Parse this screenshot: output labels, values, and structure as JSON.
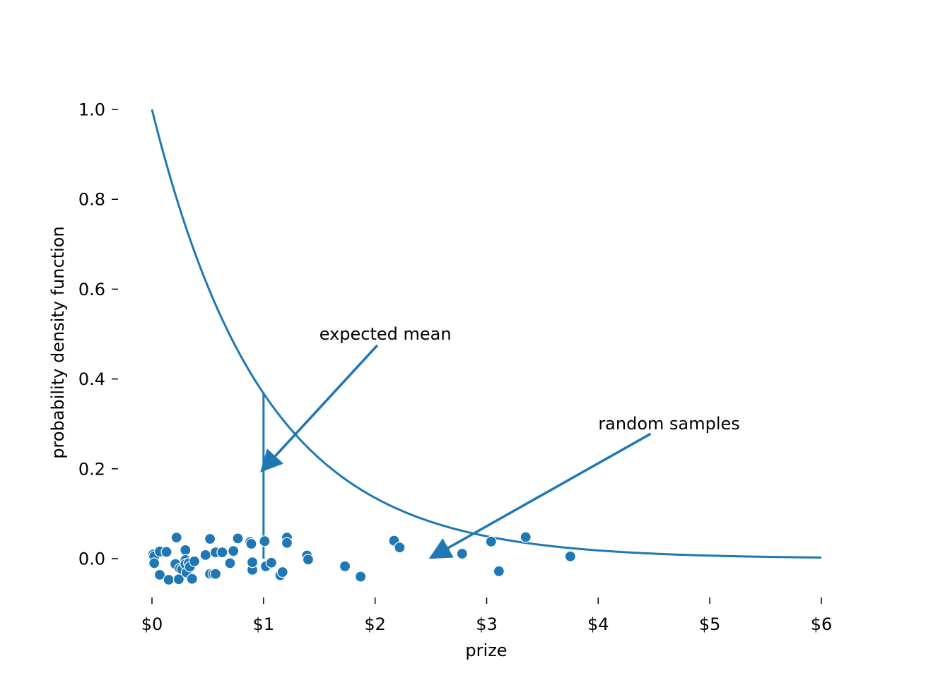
{
  "chart_data": {
    "type": "scatter",
    "title": "",
    "xlabel": "prize",
    "ylabel": "probability density function",
    "xlim": [
      -0.1,
      6.05
    ],
    "ylim": [
      -0.09,
      1.1
    ],
    "grid": false,
    "x_ticks": [
      0,
      1,
      2,
      3,
      4,
      5,
      6
    ],
    "x_tick_labels": [
      "$0",
      "$1",
      "$2",
      "$3",
      "$4",
      "$5",
      "$6"
    ],
    "y_ticks": [
      0.0,
      0.2,
      0.4,
      0.6,
      0.8,
      1.0
    ],
    "y_tick_labels": [
      "0.0",
      "0.2",
      "0.4",
      "0.6",
      "0.8",
      "1.0"
    ],
    "color": "#1f77b4",
    "pdf_curve": {
      "type": "line",
      "distribution": "exponential",
      "rate": 1,
      "x_range": [
        0,
        6
      ]
    },
    "mean_line": {
      "x": 1,
      "y_range": [
        0,
        0.37
      ]
    },
    "series": [
      {
        "type": "scatter",
        "points": [
          [
            0.01,
            0.009
          ],
          [
            0.02,
            0.005
          ],
          [
            0.02,
            -0.01
          ],
          [
            0.07,
            0.016
          ],
          [
            0.07,
            -0.036
          ],
          [
            0.13,
            0.015
          ],
          [
            0.15,
            -0.047
          ],
          [
            0.21,
            -0.012
          ],
          [
            0.22,
            0.047
          ],
          [
            0.24,
            -0.046
          ],
          [
            0.25,
            -0.022
          ],
          [
            0.27,
            -0.024
          ],
          [
            0.3,
            0.019
          ],
          [
            0.3,
            -0.003
          ],
          [
            0.3,
            -0.012
          ],
          [
            0.31,
            -0.031
          ],
          [
            0.33,
            -0.01
          ],
          [
            0.34,
            -0.018
          ],
          [
            0.36,
            -0.045
          ],
          [
            0.38,
            -0.006
          ],
          [
            0.48,
            0.008
          ],
          [
            0.52,
            0.044
          ],
          [
            0.52,
            -0.034
          ],
          [
            0.55,
            -0.034
          ],
          [
            0.57,
            -0.034
          ],
          [
            0.57,
            0.014
          ],
          [
            0.63,
            0.014
          ],
          [
            0.7,
            -0.01
          ],
          [
            0.73,
            0.017
          ],
          [
            0.77,
            0.045
          ],
          [
            0.88,
            0.037
          ],
          [
            0.89,
            0.033
          ],
          [
            0.9,
            -0.025
          ],
          [
            0.9,
            -0.008
          ],
          [
            1.01,
            0.039
          ],
          [
            1.02,
            -0.017
          ],
          [
            1.07,
            -0.009
          ],
          [
            1.15,
            -0.037
          ],
          [
            1.17,
            -0.03
          ],
          [
            1.21,
            0.047
          ],
          [
            1.21,
            0.035
          ],
          [
            1.39,
            0.007
          ],
          [
            1.4,
            -0.002
          ],
          [
            1.73,
            -0.017
          ],
          [
            1.87,
            -0.04
          ],
          [
            2.17,
            0.04
          ],
          [
            2.22,
            0.025
          ],
          [
            2.78,
            0.011
          ],
          [
            3.04,
            0.038
          ],
          [
            3.11,
            -0.028
          ],
          [
            3.35,
            0.048
          ],
          [
            3.75,
            0.005
          ]
        ]
      }
    ],
    "annotations": [
      {
        "text": "expected mean",
        "text_at": [
          1.5,
          0.5
        ],
        "arrow_from": [
          2.02,
          0.475
        ],
        "arrow_to": [
          1.0,
          0.2
        ]
      },
      {
        "text": "random samples",
        "text_at": [
          4.0,
          0.3
        ],
        "arrow_from": [
          4.47,
          0.278
        ],
        "arrow_to": [
          2.52,
          0.005
        ]
      }
    ]
  }
}
